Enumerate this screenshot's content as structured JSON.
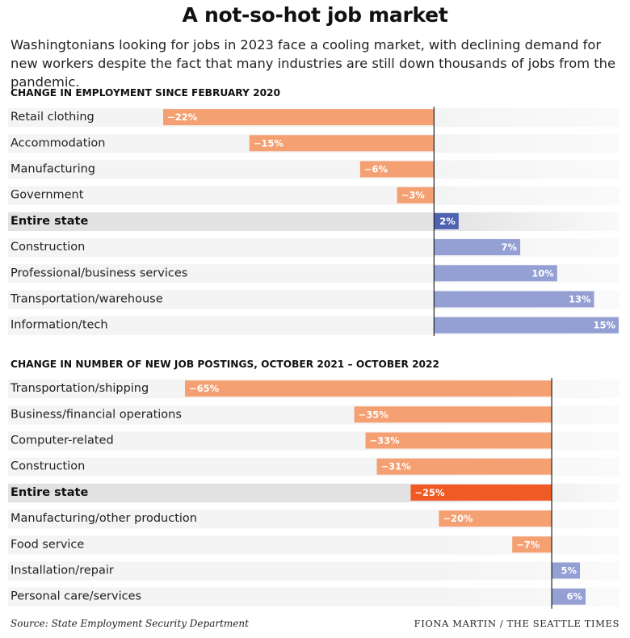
{
  "title": "A not-so-hot job market",
  "subtitle": "Washingtonians looking for jobs in 2023 face a cooling market, with declining demand for new workers despite the fact that many industries are still down thousands of jobs from the pandemic.",
  "source": "Source: State Employment Security Department",
  "credit": "FIONA MARTIN / THE SEATTLE TIMES",
  "colors": {
    "negative": "#f4a072",
    "negative_highlight": "#f05a24",
    "positive": "#949fd4",
    "positive_highlight": "#4f63b3",
    "row_stripe": "#f4f4f4",
    "row_stripe_highlight": "#e2e2e2",
    "axis": "#222222"
  },
  "chart_data": [
    {
      "type": "bar",
      "orientation": "horizontal",
      "title": "CHANGE IN EMPLOYMENT SINCE FEBRUARY 2020",
      "unit": "%",
      "xlim": [
        -22,
        15
      ],
      "categories": [
        "Retail clothing",
        "Accommodation",
        "Manufacturing",
        "Government",
        "Entire state",
        "Construction",
        "Professional/business services",
        "Transportation/warehouse",
        "Information/tech"
      ],
      "values": [
        -22,
        -15,
        -6,
        -3,
        2,
        7,
        10,
        13,
        15
      ],
      "labels": [
        "−22%",
        "−15%",
        "−6%",
        "−3%",
        "2%",
        "7%",
        "10%",
        "13%",
        "15%"
      ],
      "highlight": [
        "Entire state"
      ]
    },
    {
      "type": "bar",
      "orientation": "horizontal",
      "title": "CHANGE IN NUMBER OF NEW JOB POSTINGS, OCTOBER 2021 – OCTOBER 2022",
      "unit": "%",
      "xlim": [
        -65,
        6
      ],
      "categories": [
        "Transportation/shipping",
        "Business/financial operations",
        "Computer-related",
        "Construction",
        "Entire state",
        "Manufacturing/other production",
        "Food service",
        "Installation/repair",
        "Personal care/services"
      ],
      "values": [
        -65,
        -35,
        -33,
        -31,
        -25,
        -20,
        -7,
        5,
        6
      ],
      "labels": [
        "−65%",
        "−35%",
        "−33%",
        "−31%",
        "−25%",
        "−20%",
        "−7%",
        "5%",
        "6%"
      ],
      "highlight": [
        "Entire state"
      ]
    }
  ]
}
